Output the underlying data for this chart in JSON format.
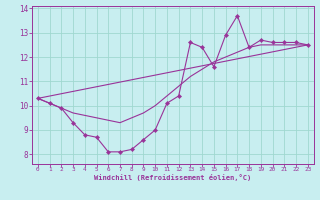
{
  "xlabel": "Windchill (Refroidissement éolien,°C)",
  "background_color": "#c8eef0",
  "grid_color": "#a0d8d0",
  "line_color": "#993399",
  "xlim": [
    -0.5,
    23.5
  ],
  "ylim": [
    7.6,
    14.1
  ],
  "xticks": [
    0,
    1,
    2,
    3,
    4,
    5,
    6,
    7,
    8,
    9,
    10,
    11,
    12,
    13,
    14,
    15,
    16,
    17,
    18,
    19,
    20,
    21,
    22,
    23
  ],
  "yticks": [
    8,
    9,
    10,
    11,
    12,
    13,
    14
  ],
  "line1_x": [
    0,
    1,
    2,
    3,
    4,
    5,
    6,
    7,
    8,
    9,
    10,
    11,
    12,
    13,
    14,
    15,
    16,
    17,
    18,
    19,
    20,
    21,
    22,
    23
  ],
  "line1_y": [
    10.3,
    10.1,
    9.9,
    9.3,
    8.8,
    8.7,
    8.1,
    8.1,
    8.2,
    8.6,
    9.0,
    10.1,
    10.4,
    12.6,
    12.4,
    11.6,
    12.9,
    13.7,
    12.4,
    12.7,
    12.6,
    12.6,
    12.6,
    12.5
  ],
  "line2_x": [
    0,
    1,
    2,
    3,
    4,
    5,
    6,
    7,
    8,
    9,
    10,
    11,
    12,
    13,
    14,
    15,
    16,
    17,
    18,
    19,
    20,
    21,
    22,
    23
  ],
  "line2_y": [
    10.3,
    10.1,
    9.9,
    9.7,
    9.6,
    9.5,
    9.4,
    9.3,
    9.5,
    9.7,
    10.0,
    10.4,
    10.8,
    11.2,
    11.5,
    11.8,
    12.0,
    12.2,
    12.4,
    12.5,
    12.5,
    12.5,
    12.5,
    12.5
  ],
  "line3_x": [
    0,
    23
  ],
  "line3_y": [
    10.3,
    12.5
  ],
  "x_label_fontsize": 5.0,
  "y_tick_fontsize": 5.5,
  "x_tick_fontsize": 4.3,
  "marker_size": 2.2,
  "line_width": 0.8
}
